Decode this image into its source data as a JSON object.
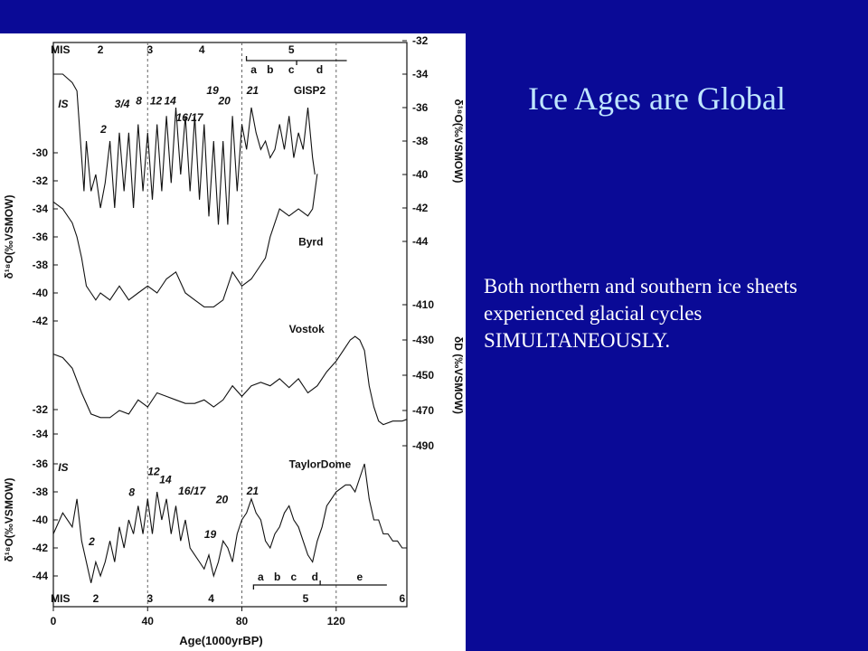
{
  "slide": {
    "title": "Ice Ages are Global",
    "body": "Both northern and southern ice sheets experienced glacial cycles SIMULTANEOUSLY."
  },
  "colors": {
    "background": "#0a0a96",
    "title": "#bfe6ff",
    "body_text": "#ffffff",
    "figure_bg": "#ffffff",
    "trace": "#111111"
  },
  "chart_data": {
    "type": "line",
    "xlabel": "Age(1000yrBP)",
    "x_ticks": [
      0,
      40,
      80,
      120
    ],
    "xlim": [
      0,
      150
    ],
    "mis_labels": {
      "top": [
        {
          "label": "MIS",
          "x": 3
        },
        {
          "label": "2",
          "x": 20
        },
        {
          "label": "3",
          "x": 41
        },
        {
          "label": "4",
          "x": 63
        },
        {
          "label": "5",
          "x": 101
        }
      ],
      "bottom": [
        {
          "label": "MIS",
          "x": 3
        },
        {
          "label": "2",
          "x": 18
        },
        {
          "label": "3",
          "x": 41
        },
        {
          "label": "4",
          "x": 67
        },
        {
          "label": "5",
          "x": 107
        },
        {
          "label": "6",
          "x": 148
        }
      ]
    },
    "boundaries": [
      40,
      80,
      120
    ],
    "substages_top": [
      {
        "label": "a",
        "x": 85
      },
      {
        "label": "b",
        "x": 92
      },
      {
        "label": "c",
        "x": 101
      },
      {
        "label": "d",
        "x": 113
      }
    ],
    "substages_bottom": [
      {
        "label": "a",
        "x": 88
      },
      {
        "label": "b",
        "x": 95
      },
      {
        "label": "c",
        "x": 102
      },
      {
        "label": "d",
        "x": 111
      },
      {
        "label": "e",
        "x": 130
      }
    ],
    "axes": {
      "gisp2": {
        "side": "right",
        "ylabel": "δ¹⁸O(‰VSMOW)",
        "ticks": [
          -32,
          -34,
          -36,
          -38,
          -40,
          -42,
          -44
        ]
      },
      "byrd": {
        "side": "left",
        "ylabel": "δ¹⁸O(‰VSMOW)",
        "ticks": [
          -30,
          -32,
          -34,
          -36,
          -38,
          -40,
          -42
        ]
      },
      "vostok": {
        "side": "right",
        "ylabel": "δD (‰VSMOW)",
        "ticks": [
          -410,
          -430,
          -450,
          -470,
          -490
        ]
      },
      "vostok_left": {
        "side": "left",
        "ticks": [
          -32,
          -34
        ]
      },
      "taylor": {
        "side": "left",
        "ylabel": "δ¹⁸O(‰VSMOW)",
        "ticks": [
          -36,
          -38,
          -40,
          -42,
          -44
        ]
      }
    },
    "series": [
      {
        "name": "GISP2",
        "axis": "gisp2",
        "x": [
          0,
          4,
          8,
          10,
          12,
          13,
          14,
          16,
          18,
          20,
          22,
          24,
          26,
          28,
          30,
          32,
          34,
          36,
          38,
          40,
          42,
          44,
          46,
          48,
          50,
          52,
          54,
          56,
          58,
          60,
          62,
          64,
          66,
          68,
          70,
          72,
          74,
          76,
          78,
          80,
          82,
          84,
          86,
          88,
          90,
          92,
          94,
          96,
          98,
          100,
          102,
          104,
          106,
          108,
          110,
          111
        ],
        "values": [
          -34,
          -34,
          -34.5,
          -35,
          -39,
          -41,
          -38,
          -41,
          -40,
          -42,
          -40.5,
          -38,
          -42,
          -37.5,
          -41,
          -37.5,
          -42,
          -37,
          -41,
          -37.5,
          -41.5,
          -37,
          -41,
          -36.5,
          -40.5,
          -36,
          -40,
          -36.5,
          -41,
          -36.5,
          -41.5,
          -37,
          -42.5,
          -38,
          -43,
          -38,
          -43,
          -36.5,
          -41,
          -37,
          -38.5,
          -36,
          -37.5,
          -38.5,
          -38,
          -39,
          -38.5,
          -37,
          -38.5,
          -36.5,
          -39,
          -37.5,
          -38.5,
          -36,
          -39,
          -40
        ],
        "annotations": [
          {
            "label": "IS",
            "x": 2,
            "y": -36
          },
          {
            "label": "2",
            "x": 20,
            "y": -37.5
          },
          {
            "label": "3/4",
            "x": 26,
            "y": -36
          },
          {
            "label": "8",
            "x": 35,
            "y": -35.8
          },
          {
            "label": "12",
            "x": 41,
            "y": -35.8
          },
          {
            "label": "14",
            "x": 47,
            "y": -35.8
          },
          {
            "label": "16/17",
            "x": 52,
            "y": -36.8
          },
          {
            "label": "19",
            "x": 65,
            "y": -35.2
          },
          {
            "label": "20",
            "x": 70,
            "y": -35.8
          },
          {
            "label": "21",
            "x": 82,
            "y": -35.2
          },
          {
            "label": "GISP2",
            "x": 102,
            "y": -35.2
          }
        ]
      },
      {
        "name": "Byrd",
        "axis": "byrd",
        "x": [
          0,
          4,
          8,
          10,
          12,
          14,
          16,
          18,
          20,
          24,
          28,
          32,
          36,
          40,
          44,
          48,
          52,
          56,
          60,
          64,
          68,
          72,
          76,
          80,
          84,
          88,
          90,
          92,
          96,
          100,
          104,
          108,
          110,
          112
        ],
        "values": [
          -33.5,
          -34,
          -35,
          -36,
          -37.5,
          -39.5,
          -40,
          -40.5,
          -40,
          -40.5,
          -39.5,
          -40.5,
          -40,
          -39.5,
          -40,
          -39,
          -38.5,
          -40,
          -40.5,
          -41,
          -41,
          -40.5,
          -38.5,
          -39.5,
          -39,
          -38,
          -37.5,
          -36,
          -34,
          -34.5,
          -34,
          -34.5,
          -34,
          -31.5
        ],
        "annotations": [
          {
            "label": "Byrd",
            "x": 104,
            "y": -36.6
          }
        ]
      },
      {
        "name": "Vostok",
        "axis": "vostok",
        "x": [
          0,
          4,
          8,
          12,
          16,
          20,
          24,
          28,
          32,
          36,
          40,
          44,
          48,
          52,
          56,
          60,
          64,
          68,
          72,
          76,
          80,
          84,
          88,
          92,
          96,
          100,
          104,
          108,
          112,
          116,
          120,
          124,
          126,
          128,
          130,
          132,
          134,
          136,
          138,
          140,
          144,
          148,
          150
        ],
        "values": [
          -438,
          -440,
          -446,
          -460,
          -472,
          -474,
          -474,
          -470,
          -472,
          -464,
          -468,
          -460,
          -462,
          -464,
          -466,
          -466,
          -464,
          -468,
          -464,
          -456,
          -462,
          -456,
          -454,
          -456,
          -452,
          -457,
          -452,
          -460,
          -456,
          -448,
          -442,
          -434,
          -430,
          -428,
          -430,
          -436,
          -456,
          -468,
          -476,
          -478,
          -476,
          -476,
          -475
        ],
        "annotations": [
          {
            "label": "Vostok",
            "x": 100,
            "y": -426
          }
        ]
      },
      {
        "name": "TaylorDome",
        "axis": "taylor",
        "x": [
          0,
          4,
          8,
          10,
          12,
          14,
          16,
          18,
          20,
          22,
          24,
          26,
          28,
          30,
          32,
          34,
          36,
          38,
          40,
          42,
          44,
          46,
          48,
          50,
          52,
          54,
          56,
          58,
          60,
          62,
          64,
          66,
          68,
          70,
          72,
          74,
          76,
          78,
          80,
          82,
          84,
          86,
          88,
          90,
          92,
          94,
          96,
          98,
          100,
          102,
          104,
          106,
          108,
          110,
          112,
          114,
          116,
          118,
          120,
          124,
          126,
          128,
          130,
          132,
          134,
          136,
          138,
          140,
          142,
          144,
          146,
          148,
          150
        ],
        "values": [
          -41,
          -39.5,
          -40.5,
          -38.5,
          -41.5,
          -43,
          -44.5,
          -43,
          -44,
          -43,
          -41.5,
          -43,
          -40.5,
          -42,
          -40,
          -41,
          -39,
          -41,
          -38.5,
          -41,
          -38,
          -40,
          -38.5,
          -41,
          -39,
          -41.5,
          -40,
          -42,
          -42.5,
          -43,
          -43.5,
          -42.5,
          -44,
          -43,
          -41.5,
          -42,
          -43,
          -41,
          -40,
          -39.5,
          -38.5,
          -39.5,
          -40,
          -41.5,
          -42,
          -41,
          -40.5,
          -39.5,
          -39,
          -40,
          -40.5,
          -41.5,
          -42.5,
          -43,
          -41.5,
          -40.5,
          -39,
          -38.5,
          -38,
          -37.5,
          -37.5,
          -38,
          -37,
          -36,
          -38.5,
          -40,
          -40,
          -41,
          -41,
          -41.5,
          -41.5,
          -42,
          -42
        ],
        "annotations": [
          {
            "label": "IS",
            "x": 2,
            "y": -36.5
          },
          {
            "label": "2",
            "x": 15,
            "y": -41.8
          },
          {
            "label": "8",
            "x": 32,
            "y": -38.3
          },
          {
            "label": "12",
            "x": 40,
            "y": -36.8
          },
          {
            "label": "14",
            "x": 45,
            "y": -37.4
          },
          {
            "label": "16/17",
            "x": 53,
            "y": -38.2
          },
          {
            "label": "19",
            "x": 64,
            "y": -41.3
          },
          {
            "label": "20",
            "x": 69,
            "y": -38.8
          },
          {
            "label": "21",
            "x": 82,
            "y": -38.2
          },
          {
            "label": "TaylorDome",
            "x": 100,
            "y": -36.3
          }
        ]
      }
    ]
  }
}
